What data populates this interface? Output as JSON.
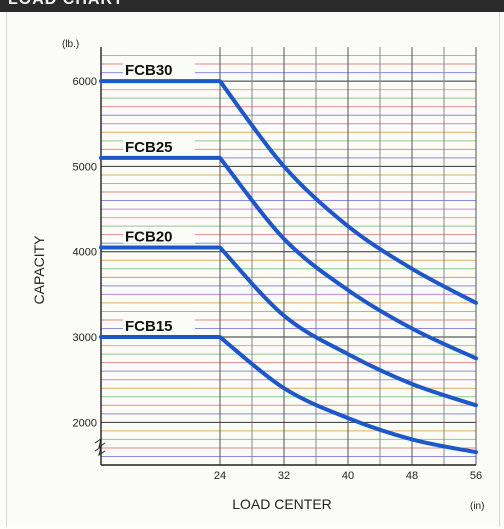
{
  "header": {
    "title": "LOAD CHART"
  },
  "chart_data": {
    "type": "line",
    "title": "",
    "ylabel": "CAPACITY",
    "xlabel": "LOAD CENTER",
    "y_unit": "(lb.)",
    "x_unit": "(in)",
    "xlim": [
      12,
      56
    ],
    "ylim": [
      1500,
      6400
    ],
    "x_ticks": [
      24,
      32,
      40,
      48,
      56
    ],
    "y_ticks": [
      2000,
      3000,
      4000,
      5000,
      6000
    ],
    "axis_break": true,
    "grid": true,
    "grid_line_colors": [
      "#7070e0",
      "#e07070",
      "#70c070",
      "#d0a040",
      "#b070d0"
    ],
    "series_color": "#1d57c8",
    "series": [
      {
        "name": "FCB30",
        "x": [
          12,
          24,
          32,
          40,
          48,
          56
        ],
        "y": [
          6000,
          6000,
          5000,
          4300,
          3800,
          3400
        ]
      },
      {
        "name": "FCB25",
        "x": [
          12,
          24,
          32,
          40,
          48,
          56
        ],
        "y": [
          5100,
          5100,
          4150,
          3550,
          3100,
          2750
        ]
      },
      {
        "name": "FCB20",
        "x": [
          12,
          24,
          32,
          40,
          48,
          56
        ],
        "y": [
          4050,
          4050,
          3250,
          2800,
          2450,
          2200
        ]
      },
      {
        "name": "FCB15",
        "x": [
          12,
          24,
          32,
          40,
          48,
          56
        ],
        "y": [
          3000,
          3000,
          2400,
          2050,
          1800,
          1650
        ]
      }
    ]
  }
}
